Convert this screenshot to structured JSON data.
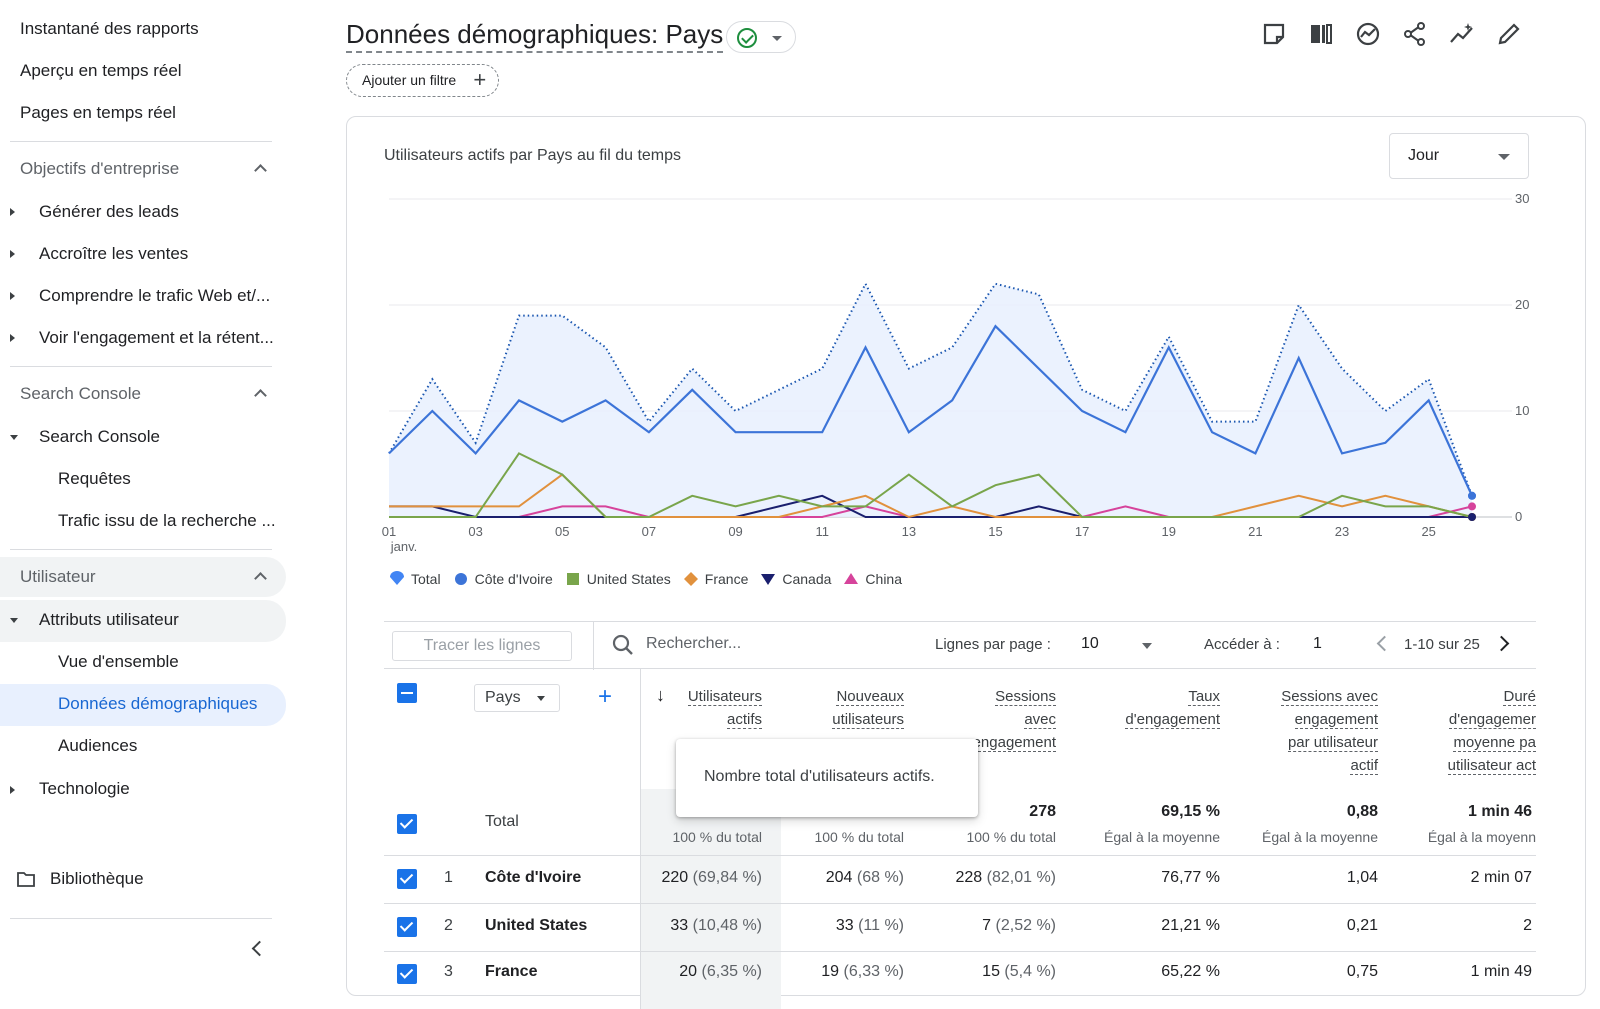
{
  "sidebar": {
    "top_links": [
      "Instantané des rapports",
      "Aperçu en temps réel",
      "Pages en temps réel"
    ],
    "section_business": "Objectifs d'entreprise",
    "business_items": [
      "Générer des leads",
      "Accroître les ventes",
      "Comprendre le trafic Web et/...",
      "Voir l'engagement et la rétent..."
    ],
    "section_search": "Search Console",
    "search_parent": "Search Console",
    "search_children": [
      "Requêtes",
      "Trafic issu de la recherche ..."
    ],
    "section_user": "Utilisateur",
    "user_parent": "Attributs utilisateur",
    "user_children": [
      "Vue d'ensemble",
      "Données démographiques",
      "Audiences"
    ],
    "tech": "Technologie",
    "library": "Bibliothèque"
  },
  "header": {
    "title": "Données démographiques: Pays",
    "add_filter": "Ajouter un filtre"
  },
  "chart": {
    "title": "Utilisateurs actifs par Pays au fil du temps",
    "granularity": "Jour",
    "month_label": "janv."
  },
  "colors": {
    "total": "#4285f4",
    "cote_divoire": "#3c74d8",
    "united_states": "#79a54b",
    "france": "#e1913d",
    "canada": "#1a1f6e",
    "china": "#d6439b",
    "accent": "#1a73e8"
  },
  "chart_data": {
    "type": "line",
    "x": [
      "01",
      "02",
      "03",
      "04",
      "05",
      "06",
      "07",
      "08",
      "09",
      "10",
      "11",
      "12",
      "13",
      "14",
      "15",
      "16",
      "17",
      "18",
      "19",
      "20",
      "21",
      "22",
      "23",
      "24",
      "25",
      "26"
    ],
    "x_tick_labels": [
      "01",
      "03",
      "05",
      "07",
      "09",
      "11",
      "13",
      "15",
      "17",
      "19",
      "21",
      "23",
      "25"
    ],
    "ylim": [
      0,
      30
    ],
    "y_ticks": [
      0,
      10,
      20,
      30
    ],
    "grid": true,
    "legend_position": "bottom-left",
    "series": [
      {
        "name": "Total",
        "style": "dotted-area",
        "values": [
          6,
          13,
          7,
          19,
          19,
          16,
          9,
          14,
          10,
          12,
          14,
          22,
          14,
          16,
          22,
          21,
          12,
          10,
          17,
          9,
          9,
          20,
          14,
          10,
          13,
          2
        ]
      },
      {
        "name": "Côte d'Ivoire",
        "values": [
          6,
          10,
          6,
          11,
          9,
          11,
          8,
          12,
          8,
          8,
          8,
          16,
          8,
          11,
          18,
          14,
          10,
          8,
          16,
          8,
          6,
          15,
          6,
          7,
          11,
          2
        ]
      },
      {
        "name": "United States",
        "values": [
          0,
          0,
          0,
          6,
          4,
          0,
          0,
          2,
          1,
          2,
          1,
          1,
          4,
          1,
          3,
          4,
          0,
          0,
          0,
          0,
          0,
          0,
          2,
          1,
          1,
          0
        ]
      },
      {
        "name": "France",
        "values": [
          1,
          1,
          1,
          1,
          4,
          0,
          0,
          0,
          0,
          0,
          1,
          2,
          0,
          1,
          0,
          0,
          0,
          0,
          0,
          0,
          1,
          2,
          1,
          2,
          1,
          0
        ]
      },
      {
        "name": "Canada",
        "values": [
          1,
          1,
          0,
          0,
          0,
          0,
          0,
          0,
          0,
          1,
          2,
          0,
          0,
          0,
          0,
          1,
          0,
          0,
          0,
          0,
          0,
          0,
          0,
          0,
          0,
          0
        ]
      },
      {
        "name": "China",
        "values": [
          0,
          0,
          0,
          0,
          1,
          1,
          0,
          0,
          0,
          0,
          0,
          1,
          0,
          0,
          0,
          0,
          0,
          1,
          0,
          0,
          0,
          0,
          0,
          0,
          0,
          1
        ]
      }
    ]
  },
  "toolbar": {
    "trace": "Tracer les lignes",
    "search_placeholder": "Rechercher...",
    "rows_label": "Lignes par page :",
    "rows_value": "10",
    "goto_label": "Accéder à :",
    "goto_value": "1",
    "pagination": "1-10 sur 25"
  },
  "table": {
    "dimension": "Pays",
    "columns": [
      {
        "lines": [
          "Utilisateurs",
          "actifs"
        ]
      },
      {
        "lines": [
          "Nouveaux",
          "utilisateurs"
        ]
      },
      {
        "lines": [
          "Sessions",
          "avec",
          "engagement"
        ]
      },
      {
        "lines": [
          "Taux",
          "d'engagement"
        ]
      },
      {
        "lines": [
          "Sessions avec",
          "engagement",
          "par utilisateur",
          "actif"
        ]
      },
      {
        "lines": [
          "Duré",
          "d'engagemer",
          "moyenne pa",
          "utilisateur act"
        ]
      }
    ],
    "total_label": "Total",
    "totals": [
      "",
      "",
      "278",
      "69,15 %",
      "0,88",
      "1 min 46"
    ],
    "totals_sub": [
      "100 % du total",
      "100 % du total",
      "100 % du total",
      "Égal à la moyenne",
      "Égal à la moyenne",
      "Égal à la moyenn"
    ],
    "tooltip": "Nombre total d'utilisateurs actifs.",
    "rows": [
      {
        "n": "1",
        "country": "Côte d'Ivoire",
        "c1": "220",
        "c1p": "(69,84 %)",
        "c2": "204",
        "c2p": "(68 %)",
        "c3": "228",
        "c3p": "(82,01 %)",
        "c4": "76,77 %",
        "c5": "1,04",
        "c6": "2 min 07"
      },
      {
        "n": "2",
        "country": "United States",
        "c1": "33",
        "c1p": "(10,48 %)",
        "c2": "33",
        "c2p": "(11 %)",
        "c3": "7",
        "c3p": "(2,52 %)",
        "c4": "21,21 %",
        "c5": "0,21",
        "c6": "2"
      },
      {
        "n": "3",
        "country": "France",
        "c1": "20",
        "c1p": "(6,35 %)",
        "c2": "19",
        "c2p": "(6,33 %)",
        "c3": "15",
        "c3p": "(5,4 %)",
        "c4": "65,22 %",
        "c5": "0,75",
        "c6": "1 min 49"
      }
    ]
  }
}
